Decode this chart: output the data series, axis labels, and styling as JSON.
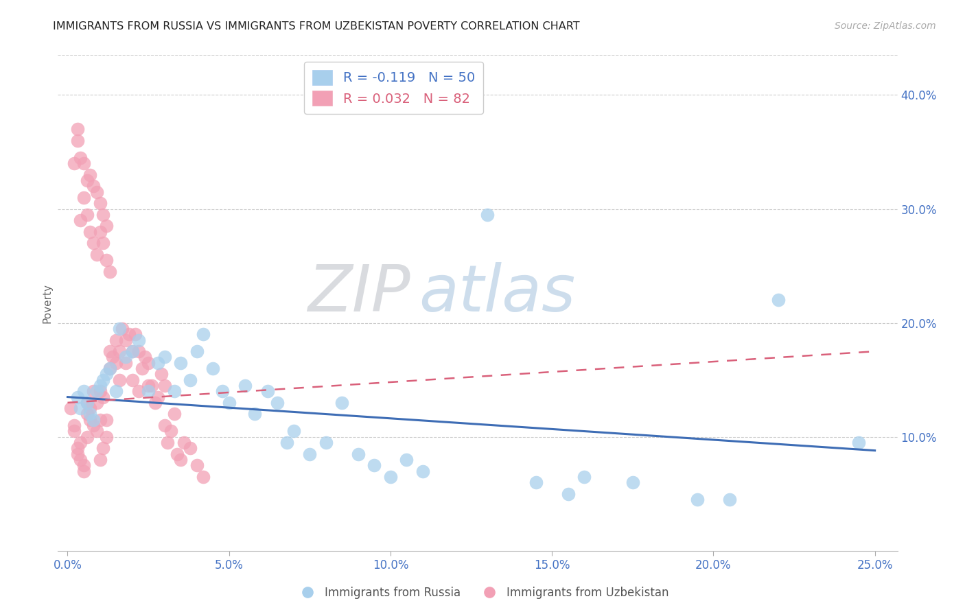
{
  "title": "IMMIGRANTS FROM RUSSIA VS IMMIGRANTS FROM UZBEKISTAN POVERTY CORRELATION CHART",
  "source": "Source: ZipAtlas.com",
  "ylabel": "Poverty",
  "right_ytick_labels": [
    "40.0%",
    "30.0%",
    "20.0%",
    "10.0%"
  ],
  "right_ytick_values": [
    0.4,
    0.3,
    0.2,
    0.1
  ],
  "bottom_xtick_labels": [
    "0.0%",
    "5.0%",
    "10.0%",
    "15.0%",
    "20.0%",
    "25.0%"
  ],
  "bottom_xtick_values": [
    0.0,
    0.05,
    0.1,
    0.15,
    0.2,
    0.25
  ],
  "xlim": [
    -0.003,
    0.257
  ],
  "ylim": [
    0.0,
    0.435
  ],
  "legend_russia_R": -0.119,
  "legend_russia_N": 50,
  "legend_uzbekistan_R": 0.032,
  "legend_uzbekistan_N": 82,
  "color_russia": "#A8CFEC",
  "color_uzbekistan": "#F2A0B5",
  "trendline_russia_color": "#3E6DB5",
  "trendline_uzbekistan_color": "#D9607A",
  "watermark_zip": "ZIP",
  "watermark_atlas": "atlas",
  "russia_x": [
    0.003,
    0.004,
    0.005,
    0.006,
    0.007,
    0.008,
    0.009,
    0.01,
    0.011,
    0.012,
    0.013,
    0.015,
    0.016,
    0.018,
    0.02,
    0.022,
    0.025,
    0.028,
    0.03,
    0.033,
    0.035,
    0.038,
    0.04,
    0.042,
    0.045,
    0.048,
    0.05,
    0.055,
    0.058,
    0.062,
    0.065,
    0.068,
    0.07,
    0.075,
    0.08,
    0.085,
    0.09,
    0.095,
    0.1,
    0.105,
    0.11,
    0.13,
    0.145,
    0.155,
    0.16,
    0.175,
    0.195,
    0.205,
    0.22,
    0.245
  ],
  "russia_y": [
    0.135,
    0.125,
    0.14,
    0.13,
    0.12,
    0.115,
    0.14,
    0.145,
    0.15,
    0.155,
    0.16,
    0.14,
    0.195,
    0.17,
    0.175,
    0.185,
    0.14,
    0.165,
    0.17,
    0.14,
    0.165,
    0.15,
    0.175,
    0.19,
    0.16,
    0.14,
    0.13,
    0.145,
    0.12,
    0.14,
    0.13,
    0.095,
    0.105,
    0.085,
    0.095,
    0.13,
    0.085,
    0.075,
    0.065,
    0.08,
    0.07,
    0.295,
    0.06,
    0.05,
    0.065,
    0.06,
    0.045,
    0.045,
    0.22,
    0.095
  ],
  "uzbekistan_x": [
    0.001,
    0.002,
    0.002,
    0.003,
    0.003,
    0.004,
    0.004,
    0.005,
    0.005,
    0.006,
    0.006,
    0.006,
    0.007,
    0.007,
    0.008,
    0.008,
    0.009,
    0.009,
    0.01,
    0.01,
    0.01,
    0.011,
    0.011,
    0.012,
    0.012,
    0.013,
    0.013,
    0.014,
    0.015,
    0.015,
    0.016,
    0.016,
    0.017,
    0.018,
    0.018,
    0.019,
    0.02,
    0.02,
    0.021,
    0.022,
    0.022,
    0.023,
    0.024,
    0.025,
    0.025,
    0.026,
    0.027,
    0.028,
    0.029,
    0.03,
    0.03,
    0.031,
    0.032,
    0.033,
    0.034,
    0.035,
    0.036,
    0.038,
    0.04,
    0.042,
    0.004,
    0.005,
    0.006,
    0.007,
    0.008,
    0.009,
    0.01,
    0.011,
    0.012,
    0.013,
    0.003,
    0.004,
    0.005,
    0.006,
    0.007,
    0.008,
    0.009,
    0.01,
    0.011,
    0.012,
    0.002,
    0.003
  ],
  "uzbekistan_y": [
    0.125,
    0.11,
    0.105,
    0.09,
    0.085,
    0.08,
    0.095,
    0.075,
    0.07,
    0.1,
    0.12,
    0.13,
    0.115,
    0.125,
    0.11,
    0.14,
    0.13,
    0.105,
    0.14,
    0.115,
    0.08,
    0.09,
    0.135,
    0.1,
    0.115,
    0.16,
    0.175,
    0.17,
    0.165,
    0.185,
    0.15,
    0.175,
    0.195,
    0.185,
    0.165,
    0.19,
    0.15,
    0.175,
    0.19,
    0.175,
    0.14,
    0.16,
    0.17,
    0.145,
    0.165,
    0.145,
    0.13,
    0.135,
    0.155,
    0.145,
    0.11,
    0.095,
    0.105,
    0.12,
    0.085,
    0.08,
    0.095,
    0.09,
    0.075,
    0.065,
    0.29,
    0.31,
    0.295,
    0.28,
    0.27,
    0.26,
    0.28,
    0.27,
    0.255,
    0.245,
    0.37,
    0.345,
    0.34,
    0.325,
    0.33,
    0.32,
    0.315,
    0.305,
    0.295,
    0.285,
    0.34,
    0.36
  ],
  "trendline_russia_x0": 0.0,
  "trendline_russia_x1": 0.25,
  "trendline_russia_y0": 0.135,
  "trendline_russia_y1": 0.088,
  "trendline_uzbekistan_x0": 0.0,
  "trendline_uzbekistan_x1": 0.25,
  "trendline_uzbekistan_y0": 0.13,
  "trendline_uzbekistan_y1": 0.175
}
